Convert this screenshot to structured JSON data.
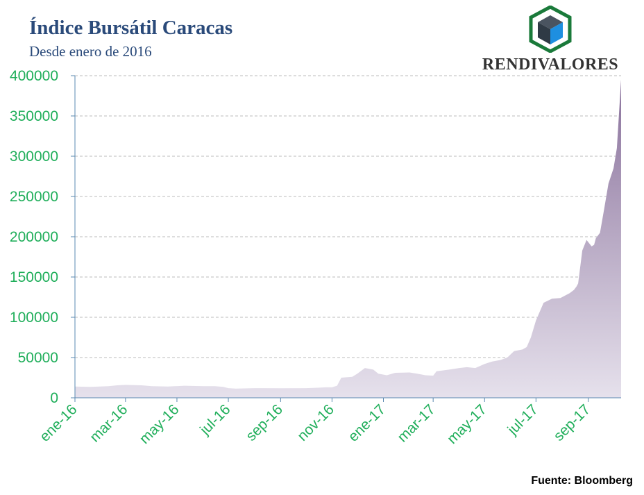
{
  "header": {
    "title": "Índice Bursátil Caracas",
    "subtitle": "Desde enero de 2016"
  },
  "logo": {
    "text": "RENDIVALORES",
    "icon": "cube-hexagon-icon",
    "colors": {
      "frame": "#1a7a3a",
      "dark": "#2f3a45",
      "blue": "#1e8fe0"
    }
  },
  "source": "Fuente: Bloomberg",
  "colors": {
    "area_top": "#8a729c",
    "area_bottom": "#e6e1ec",
    "tick_labels": "#1fae5a",
    "axis": "#5a88b0",
    "grid": "#bbbbbb"
  },
  "chart_data": {
    "type": "area",
    "title": "Índice Bursátil Caracas",
    "subtitle": "Desde enero de 2016",
    "xlabel": "",
    "ylabel": "",
    "ylim": [
      0,
      400000
    ],
    "yticks": [
      0,
      50000,
      100000,
      150000,
      200000,
      250000,
      300000,
      350000,
      400000
    ],
    "ytick_labels": [
      "0",
      "50000",
      "100000",
      "150000",
      "200000",
      "250000",
      "300000",
      "350000",
      "400000"
    ],
    "xlim": [
      "2016-01-01",
      "2017-10-10"
    ],
    "xticks": [
      "2016-01-01",
      "2016-03-01",
      "2016-05-01",
      "2016-07-01",
      "2016-09-01",
      "2016-11-01",
      "2017-01-01",
      "2017-03-01",
      "2017-05-01",
      "2017-07-01",
      "2017-09-01"
    ],
    "xtick_labels": [
      "ene-16",
      "mar-16",
      "may-16",
      "jul-16",
      "sep-16",
      "nov-16",
      "ene-17",
      "mar-17",
      "may-17",
      "jul-17",
      "sep-17"
    ],
    "grid": true,
    "legend": "none",
    "series": [
      {
        "x": [
          "2016-01-01",
          "2016-01-20",
          "2016-02-10",
          "2016-02-20",
          "2016-03-01",
          "2016-03-20",
          "2016-04-01",
          "2016-04-20",
          "2016-05-10",
          "2016-06-01",
          "2016-06-15",
          "2016-06-25",
          "2016-07-01",
          "2016-07-10",
          "2016-08-01",
          "2016-09-01",
          "2016-10-01",
          "2016-10-15",
          "2016-10-25",
          "2016-11-01",
          "2016-11-07",
          "2016-11-12",
          "2016-11-25",
          "2016-12-01",
          "2016-12-10",
          "2016-12-20",
          "2016-12-26",
          "2017-01-05",
          "2017-01-15",
          "2017-02-01",
          "2017-02-10",
          "2017-02-20",
          "2017-03-01",
          "2017-03-05",
          "2017-03-20",
          "2017-04-01",
          "2017-04-10",
          "2017-04-20",
          "2017-05-01",
          "2017-05-10",
          "2017-05-20",
          "2017-05-28",
          "2017-06-05",
          "2017-06-15",
          "2017-06-20",
          "2017-06-25",
          "2017-07-01",
          "2017-07-10",
          "2017-07-20",
          "2017-07-30",
          "2017-08-10",
          "2017-08-15",
          "2017-08-18",
          "2017-08-20",
          "2017-08-25",
          "2017-08-30",
          "2017-09-05",
          "2017-09-08",
          "2017-09-10",
          "2017-09-15",
          "2017-09-20",
          "2017-09-25",
          "2017-10-01",
          "2017-10-05",
          "2017-10-10"
        ],
        "values": [
          14000,
          13500,
          14500,
          15500,
          16000,
          15500,
          14500,
          14000,
          15000,
          14500,
          14500,
          13500,
          12000,
          11500,
          12000,
          11800,
          12000,
          12500,
          13000,
          13000,
          15000,
          25000,
          26000,
          30000,
          37000,
          35000,
          30000,
          28000,
          31000,
          31500,
          30000,
          28000,
          27500,
          33000,
          35000,
          37000,
          38000,
          37000,
          42000,
          45000,
          47000,
          50000,
          58000,
          60000,
          63000,
          75000,
          96000,
          118000,
          123000,
          124000,
          130000,
          134000,
          138000,
          142000,
          183000,
          196000,
          188000,
          190000,
          198000,
          205000,
          235000,
          266000,
          285000,
          310000,
          395000
        ]
      }
    ]
  }
}
